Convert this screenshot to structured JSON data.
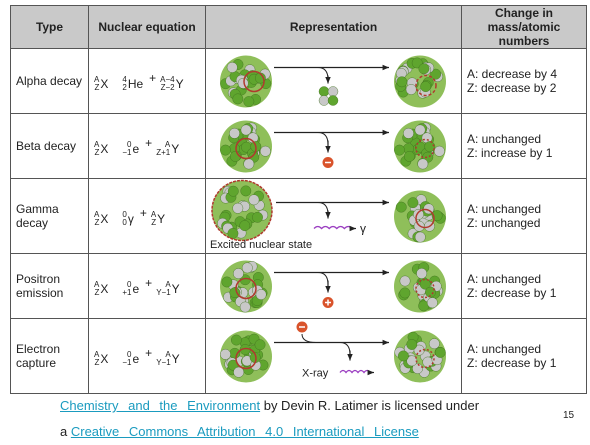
{
  "table": {
    "headers": [
      "Type",
      "Nuclear equation",
      "Representation",
      "Change in mass/atomic numbers"
    ],
    "rows": [
      {
        "type": "Alpha decay",
        "parent": {
          "mass": "A",
          "atomic": "Z",
          "symbol": "X"
        },
        "operator": "+",
        "products": [
          {
            "mass": "4",
            "atomic": "2",
            "symbol": "He"
          },
          {
            "mass": "A−4",
            "atomic": "Z−2",
            "symbol": "Y"
          }
        ],
        "changes": [
          "A: decrease by 4",
          "Z: decrease by 2"
        ]
      },
      {
        "type": "Beta decay",
        "parent": {
          "mass": "A",
          "atomic": "Z",
          "symbol": "X"
        },
        "operator": "+",
        "products": [
          {
            "mass": "0",
            "atomic": "−1",
            "symbol": "e"
          },
          {
            "mass": "A",
            "atomic": "Z+1",
            "symbol": "Y"
          }
        ],
        "changes": [
          "A: unchanged",
          "Z: increase by 1"
        ]
      },
      {
        "type": "Gamma decay",
        "parent": {
          "mass": "A",
          "atomic": "Z",
          "symbol": "X"
        },
        "operator": "+",
        "products": [
          {
            "mass": "0",
            "atomic": "0",
            "symbol": "γ"
          },
          {
            "mass": "A",
            "atomic": "Z",
            "symbol": "Y"
          }
        ],
        "representation_labels": [
          "γ",
          "Excited nuclear state"
        ],
        "changes": [
          "A: unchanged",
          "Z: unchanged"
        ]
      },
      {
        "type": "Positron emission",
        "parent": {
          "mass": "A",
          "atomic": "Z",
          "symbol": "X"
        },
        "operator": "+",
        "products": [
          {
            "mass": "0",
            "atomic": "+1",
            "symbol": "e"
          },
          {
            "mass": "A",
            "atomic": "Y−1",
            "symbol": "Y"
          }
        ],
        "changes": [
          "A: unchanged",
          "Z: decrease by 1"
        ]
      },
      {
        "type": "Electron capture",
        "parent": {
          "mass": "A",
          "atomic": "Z",
          "symbol": "X"
        },
        "operator": "+",
        "products": [
          {
            "mass": "0",
            "atomic": "−1",
            "symbol": "e"
          },
          {
            "mass": "A",
            "atomic": "Y−1",
            "symbol": "Y"
          }
        ],
        "representation_labels": [
          "X-ray"
        ],
        "changes": [
          "A: unchanged",
          "Z: decrease by 1"
        ]
      }
    ]
  },
  "footer": {
    "source_link": "Chemistry and the Environment",
    "text": "by Devin R. Latimer is licensed under",
    "prefix": "a",
    "license_link": "Creative Commons Attribution 4.0 International License",
    "page_number": "15"
  }
}
